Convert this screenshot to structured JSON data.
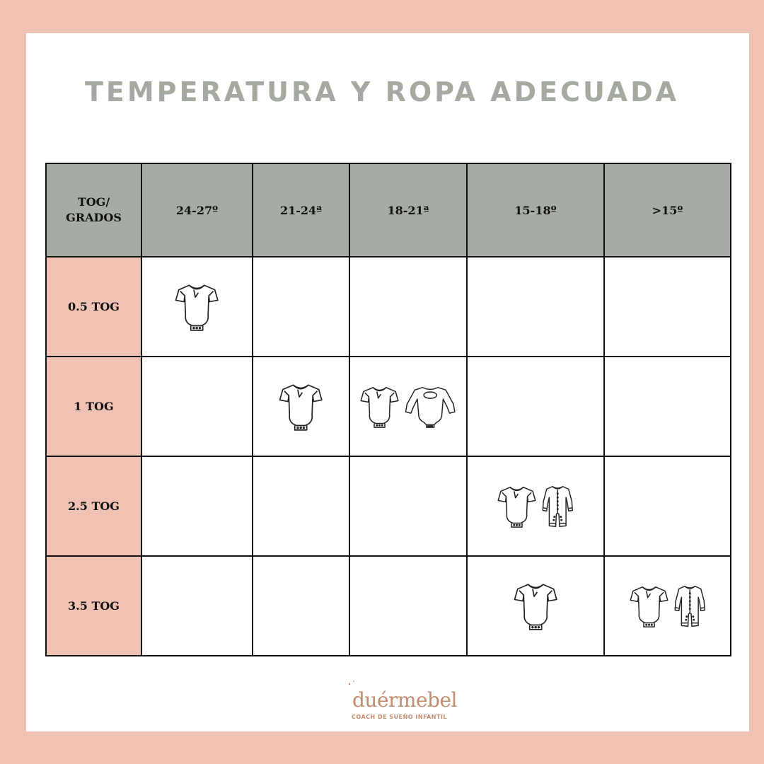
{
  "title": "TEMPERATURA Y ROPA ADECUADA",
  "table": {
    "corner_line1": "TOG/",
    "corner_line2": "GRADOS",
    "columns": [
      "24-27º",
      "21-24ª",
      "18-21ª",
      "15-18º",
      ">15º"
    ],
    "rows": [
      {
        "label": "0.5 TOG",
        "cells": [
          [
            "short-sleeve-bodysuit-icon"
          ],
          [],
          [],
          [],
          []
        ]
      },
      {
        "label": "1 TOG",
        "cells": [
          [],
          [
            "short-sleeve-bodysuit-icon"
          ],
          [
            "short-sleeve-bodysuit-icon",
            "long-sleeve-bodysuit-icon"
          ],
          [],
          []
        ]
      },
      {
        "label": "2.5 TOG",
        "cells": [
          [],
          [],
          [],
          [
            "short-sleeve-bodysuit-icon",
            "footed-sleeper-icon"
          ],
          []
        ]
      },
      {
        "label": "3.5 TOG",
        "cells": [
          [],
          [],
          [],
          [
            "short-sleeve-bodysuit-icon"
          ],
          [
            "short-sleeve-bodysuit-icon",
            "footed-sleeper-icon"
          ]
        ]
      }
    ]
  },
  "logo": {
    "name": "duérmebel",
    "tagline": "COACH DE SUEÑO INFANTIL"
  },
  "colors": {
    "frame": "#efc2b3",
    "header": "#a6aca3",
    "title": "#a4aaa0",
    "logo": "#c28c6e"
  }
}
